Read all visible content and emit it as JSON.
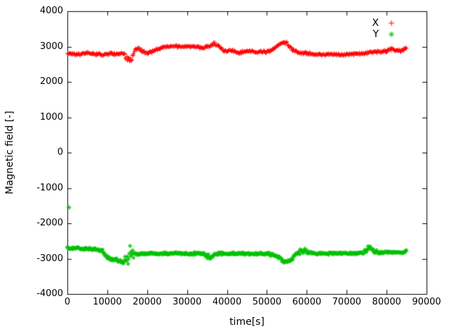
{
  "figure": {
    "background": "#ffffff",
    "axis_color": "#000000"
  },
  "chart_data": {
    "type": "scatter",
    "title": "",
    "xlabel": "time[s]",
    "ylabel": "Magnetic field [-]",
    "xlim": [
      0,
      90000
    ],
    "ylim": [
      -4000,
      4000
    ],
    "xticks": [
      0,
      10000,
      20000,
      30000,
      40000,
      50000,
      60000,
      70000,
      80000,
      90000
    ],
    "yticks": [
      -4000,
      -3000,
      -2000,
      -1000,
      0,
      1000,
      2000,
      3000,
      4000
    ],
    "grid": false,
    "legend_position": "top-right-inside",
    "series": [
      {
        "name": "X",
        "color": "#ff0000",
        "marker": "+",
        "x": [
          0,
          1000,
          2000,
          3000,
          4000,
          5000,
          6000,
          7000,
          8000,
          9000,
          10000,
          11000,
          12000,
          13000,
          14000,
          15000,
          16000,
          17000,
          18000,
          19000,
          20000,
          21000,
          22000,
          23000,
          24000,
          25000,
          26000,
          27000,
          28000,
          29000,
          30000,
          31000,
          32000,
          33000,
          34000,
          35000,
          36000,
          37000,
          38000,
          39000,
          40000,
          41000,
          42000,
          43000,
          44000,
          45000,
          46000,
          47000,
          48000,
          49000,
          50000,
          51000,
          52000,
          53000,
          54000,
          55000,
          56000,
          57000,
          58000,
          59000,
          60000,
          61000,
          62000,
          63000,
          64000,
          65000,
          66000,
          67000,
          68000,
          69000,
          70000,
          71000,
          72000,
          73000,
          74000,
          75000,
          76000,
          77000,
          78000,
          79000,
          80000,
          81000,
          82000,
          83000,
          84000,
          85000
        ],
        "y": [
          2800,
          2810,
          2790,
          2780,
          2800,
          2815,
          2800,
          2785,
          2795,
          2760,
          2780,
          2800,
          2785,
          2800,
          2815,
          2680,
          2560,
          2900,
          2940,
          2860,
          2810,
          2850,
          2900,
          2950,
          2990,
          3000,
          3000,
          3000,
          3000,
          3000,
          3000,
          3000,
          3000,
          2980,
          2950,
          3000,
          3050,
          3070,
          3000,
          2900,
          2860,
          2900,
          2850,
          2810,
          2850,
          2870,
          2850,
          2840,
          2860,
          2850,
          2860,
          2880,
          2950,
          3060,
          3120,
          3090,
          2950,
          2860,
          2830,
          2800,
          2820,
          2800,
          2780,
          2775,
          2780,
          2775,
          2780,
          2775,
          2780,
          2775,
          2780,
          2785,
          2790,
          2800,
          2805,
          2820,
          2850,
          2850,
          2860,
          2855,
          2870,
          2900,
          2920,
          2880,
          2900,
          2950
        ],
        "noise": [
          45,
          45,
          45,
          45,
          45,
          45,
          45,
          45,
          45,
          55,
          45,
          45,
          45,
          45,
          45,
          120,
          140,
          60,
          45,
          45,
          45,
          45,
          45,
          45,
          45,
          40,
          40,
          40,
          40,
          40,
          40,
          40,
          40,
          45,
          45,
          50,
          60,
          65,
          50,
          45,
          45,
          45,
          45,
          45,
          45,
          45,
          45,
          45,
          45,
          45,
          45,
          45,
          55,
          60,
          60,
          65,
          50,
          45,
          45,
          45,
          45,
          45,
          40,
          40,
          40,
          40,
          40,
          40,
          40,
          40,
          40,
          40,
          40,
          40,
          45,
          45,
          45,
          45,
          45,
          45,
          45,
          60,
          60,
          50,
          55,
          60
        ]
      },
      {
        "name": "Y",
        "color": "#00c000",
        "marker": "*",
        "x": [
          0,
          1000,
          2000,
          3000,
          4000,
          5000,
          6000,
          7000,
          8000,
          9000,
          10000,
          11000,
          12000,
          13000,
          14000,
          15000,
          16000,
          17000,
          18000,
          19000,
          20000,
          21000,
          22000,
          23000,
          24000,
          25000,
          26000,
          27000,
          28000,
          29000,
          30000,
          31000,
          32000,
          33000,
          34000,
          35000,
          36000,
          37000,
          38000,
          39000,
          40000,
          41000,
          42000,
          43000,
          44000,
          45000,
          46000,
          47000,
          48000,
          49000,
          50000,
          51000,
          52000,
          53000,
          54000,
          55000,
          56000,
          57000,
          58000,
          59000,
          60000,
          61000,
          62000,
          63000,
          64000,
          65000,
          66000,
          67000,
          68000,
          69000,
          70000,
          71000,
          72000,
          73000,
          74000,
          75000,
          76000,
          77000,
          78000,
          79000,
          80000,
          81000,
          82000,
          83000,
          84000,
          85000
        ],
        "y": [
          -2700,
          -2710,
          -2700,
          -2715,
          -2725,
          -2720,
          -2735,
          -2745,
          -2750,
          -2820,
          -2950,
          -3000,
          -3040,
          -3050,
          -3090,
          -2950,
          -2850,
          -2860,
          -2870,
          -2850,
          -2860,
          -2850,
          -2855,
          -2850,
          -2855,
          -2850,
          -2855,
          -2850,
          -2860,
          -2855,
          -2870,
          -2860,
          -2855,
          -2860,
          -2880,
          -2920,
          -2940,
          -2880,
          -2860,
          -2850,
          -2855,
          -2850,
          -2860,
          -2855,
          -2860,
          -2870,
          -2860,
          -2850,
          -2855,
          -2860,
          -2870,
          -2880,
          -2900,
          -2960,
          -3060,
          -3100,
          -3040,
          -2900,
          -2800,
          -2760,
          -2800,
          -2850,
          -2850,
          -2860,
          -2850,
          -2860,
          -2850,
          -2860,
          -2850,
          -2860,
          -2850,
          -2860,
          -2850,
          -2840,
          -2830,
          -2760,
          -2710,
          -2800,
          -2820,
          -2830,
          -2820,
          -2830,
          -2820,
          -2830,
          -2820,
          -2800
        ],
        "noise": [
          45,
          45,
          45,
          45,
          45,
          45,
          45,
          45,
          45,
          70,
          65,
          65,
          65,
          65,
          65,
          300,
          240,
          70,
          45,
          45,
          45,
          45,
          45,
          45,
          45,
          45,
          45,
          45,
          45,
          45,
          45,
          45,
          45,
          45,
          80,
          100,
          90,
          60,
          45,
          45,
          45,
          45,
          45,
          45,
          45,
          45,
          45,
          45,
          45,
          45,
          45,
          45,
          45,
          55,
          60,
          60,
          60,
          70,
          130,
          140,
          100,
          60,
          40,
          40,
          40,
          40,
          40,
          40,
          40,
          40,
          40,
          40,
          40,
          40,
          45,
          120,
          130,
          70,
          45,
          45,
          45,
          45,
          45,
          45,
          45,
          45
        ]
      }
    ],
    "outliers": [
      {
        "series": "Y",
        "x": 400,
        "y": -1550
      }
    ]
  }
}
